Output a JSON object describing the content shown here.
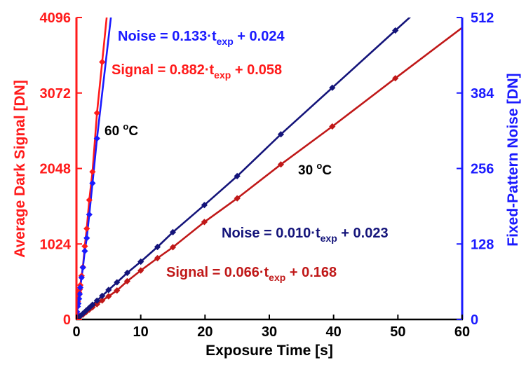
{
  "chart_data": {
    "type": "line",
    "xlabel": "Exposure Time [s]",
    "ylabel_left": "Average Dark Signal [DN]",
    "ylabel_right": "Fixed-Pattern Noise [DN]",
    "xlim": [
      0,
      60
    ],
    "ylim_left": [
      0,
      4096
    ],
    "ylim_right": [
      0,
      512
    ],
    "x_ticks": [
      "0",
      "10",
      "20",
      "30",
      "40",
      "50",
      "60"
    ],
    "y_left_ticks": [
      "0",
      "1024",
      "2048",
      "3072",
      "4096"
    ],
    "y_right_ticks": [
      "0",
      "128",
      "256",
      "384",
      "512"
    ],
    "grid": false,
    "colors": {
      "signal_60": "#ff1a1a",
      "noise_60": "#1a1aff",
      "signal_30": "#c01818",
      "noise_30": "#14147a",
      "left_axis": "#ff1a1a",
      "right_axis": "#1a1aff"
    },
    "series": [
      {
        "axis": "left",
        "color_key": "signal_60",
        "x": [
          0.05,
          0.1,
          0.2,
          0.3,
          0.4,
          0.5,
          0.6,
          0.8,
          1.0,
          1.3,
          1.6,
          2.0,
          2.5,
          3.2,
          4.0
        ],
        "y": [
          81,
          173,
          242,
          320,
          367,
          405,
          466,
          592,
          711,
          993,
          1233,
          1620,
          2003,
          2801,
          3493
        ]
      },
      {
        "axis": "right",
        "color_key": "noise_60",
        "x": [
          0.05,
          0.1,
          0.2,
          0.3,
          0.4,
          0.5,
          0.6,
          0.8,
          1.0,
          1.3,
          1.6,
          2.0,
          2.5,
          3.2
        ],
        "y": [
          8,
          13,
          22,
          27,
          35,
          43,
          54,
          71,
          88,
          116,
          138,
          178,
          231,
          307
        ]
      },
      {
        "axis": "left",
        "color_key": "signal_30",
        "x": [
          0.2,
          0.5,
          1.0,
          1.5,
          2.0,
          2.5,
          3.2,
          4.0,
          5.0,
          6.3,
          7.9,
          10.0,
          12.6,
          15.0,
          19.9,
          25.0,
          31.8,
          39.8,
          49.6
        ],
        "y": [
          14,
          35,
          66,
          100,
          133,
          166,
          207,
          258,
          314,
          393,
          519,
          664,
          832,
          980,
          1322,
          1643,
          2103,
          2618,
          3272
        ]
      },
      {
        "axis": "right",
        "color_key": "noise_30",
        "x": [
          0.2,
          0.5,
          1.0,
          1.5,
          2.0,
          2.5,
          3.2,
          4.0,
          5.0,
          6.3,
          7.9,
          10.0,
          12.6,
          15.0,
          19.9,
          25.0,
          31.8,
          39.8,
          49.6
        ],
        "y": [
          2.4,
          5,
          10,
          15,
          20,
          25,
          32,
          40,
          50,
          63,
          79,
          98,
          123,
          148,
          194,
          243,
          314,
          393,
          490
        ]
      }
    ],
    "annotations": {
      "noise_60_eq": {
        "label": "Noise = 0.133·t",
        "sub": "exp",
        "suffix": " + 0.024"
      },
      "signal_60_eq": {
        "label": "Signal = 0.882·t",
        "sub": "exp",
        "suffix": " + 0.058"
      },
      "noise_30_eq": {
        "label": "Noise = 0.010·t",
        "sub": "exp",
        "suffix": " + 0.023"
      },
      "signal_30_eq": {
        "label": "Signal = 0.066·t",
        "sub": "exp",
        "suffix": " + 0.168"
      },
      "temp_60": {
        "pre": "60 ",
        "sup": "o",
        "post": "C"
      },
      "temp_30": {
        "pre": "30 ",
        "sup": "o",
        "post": "C"
      }
    }
  }
}
